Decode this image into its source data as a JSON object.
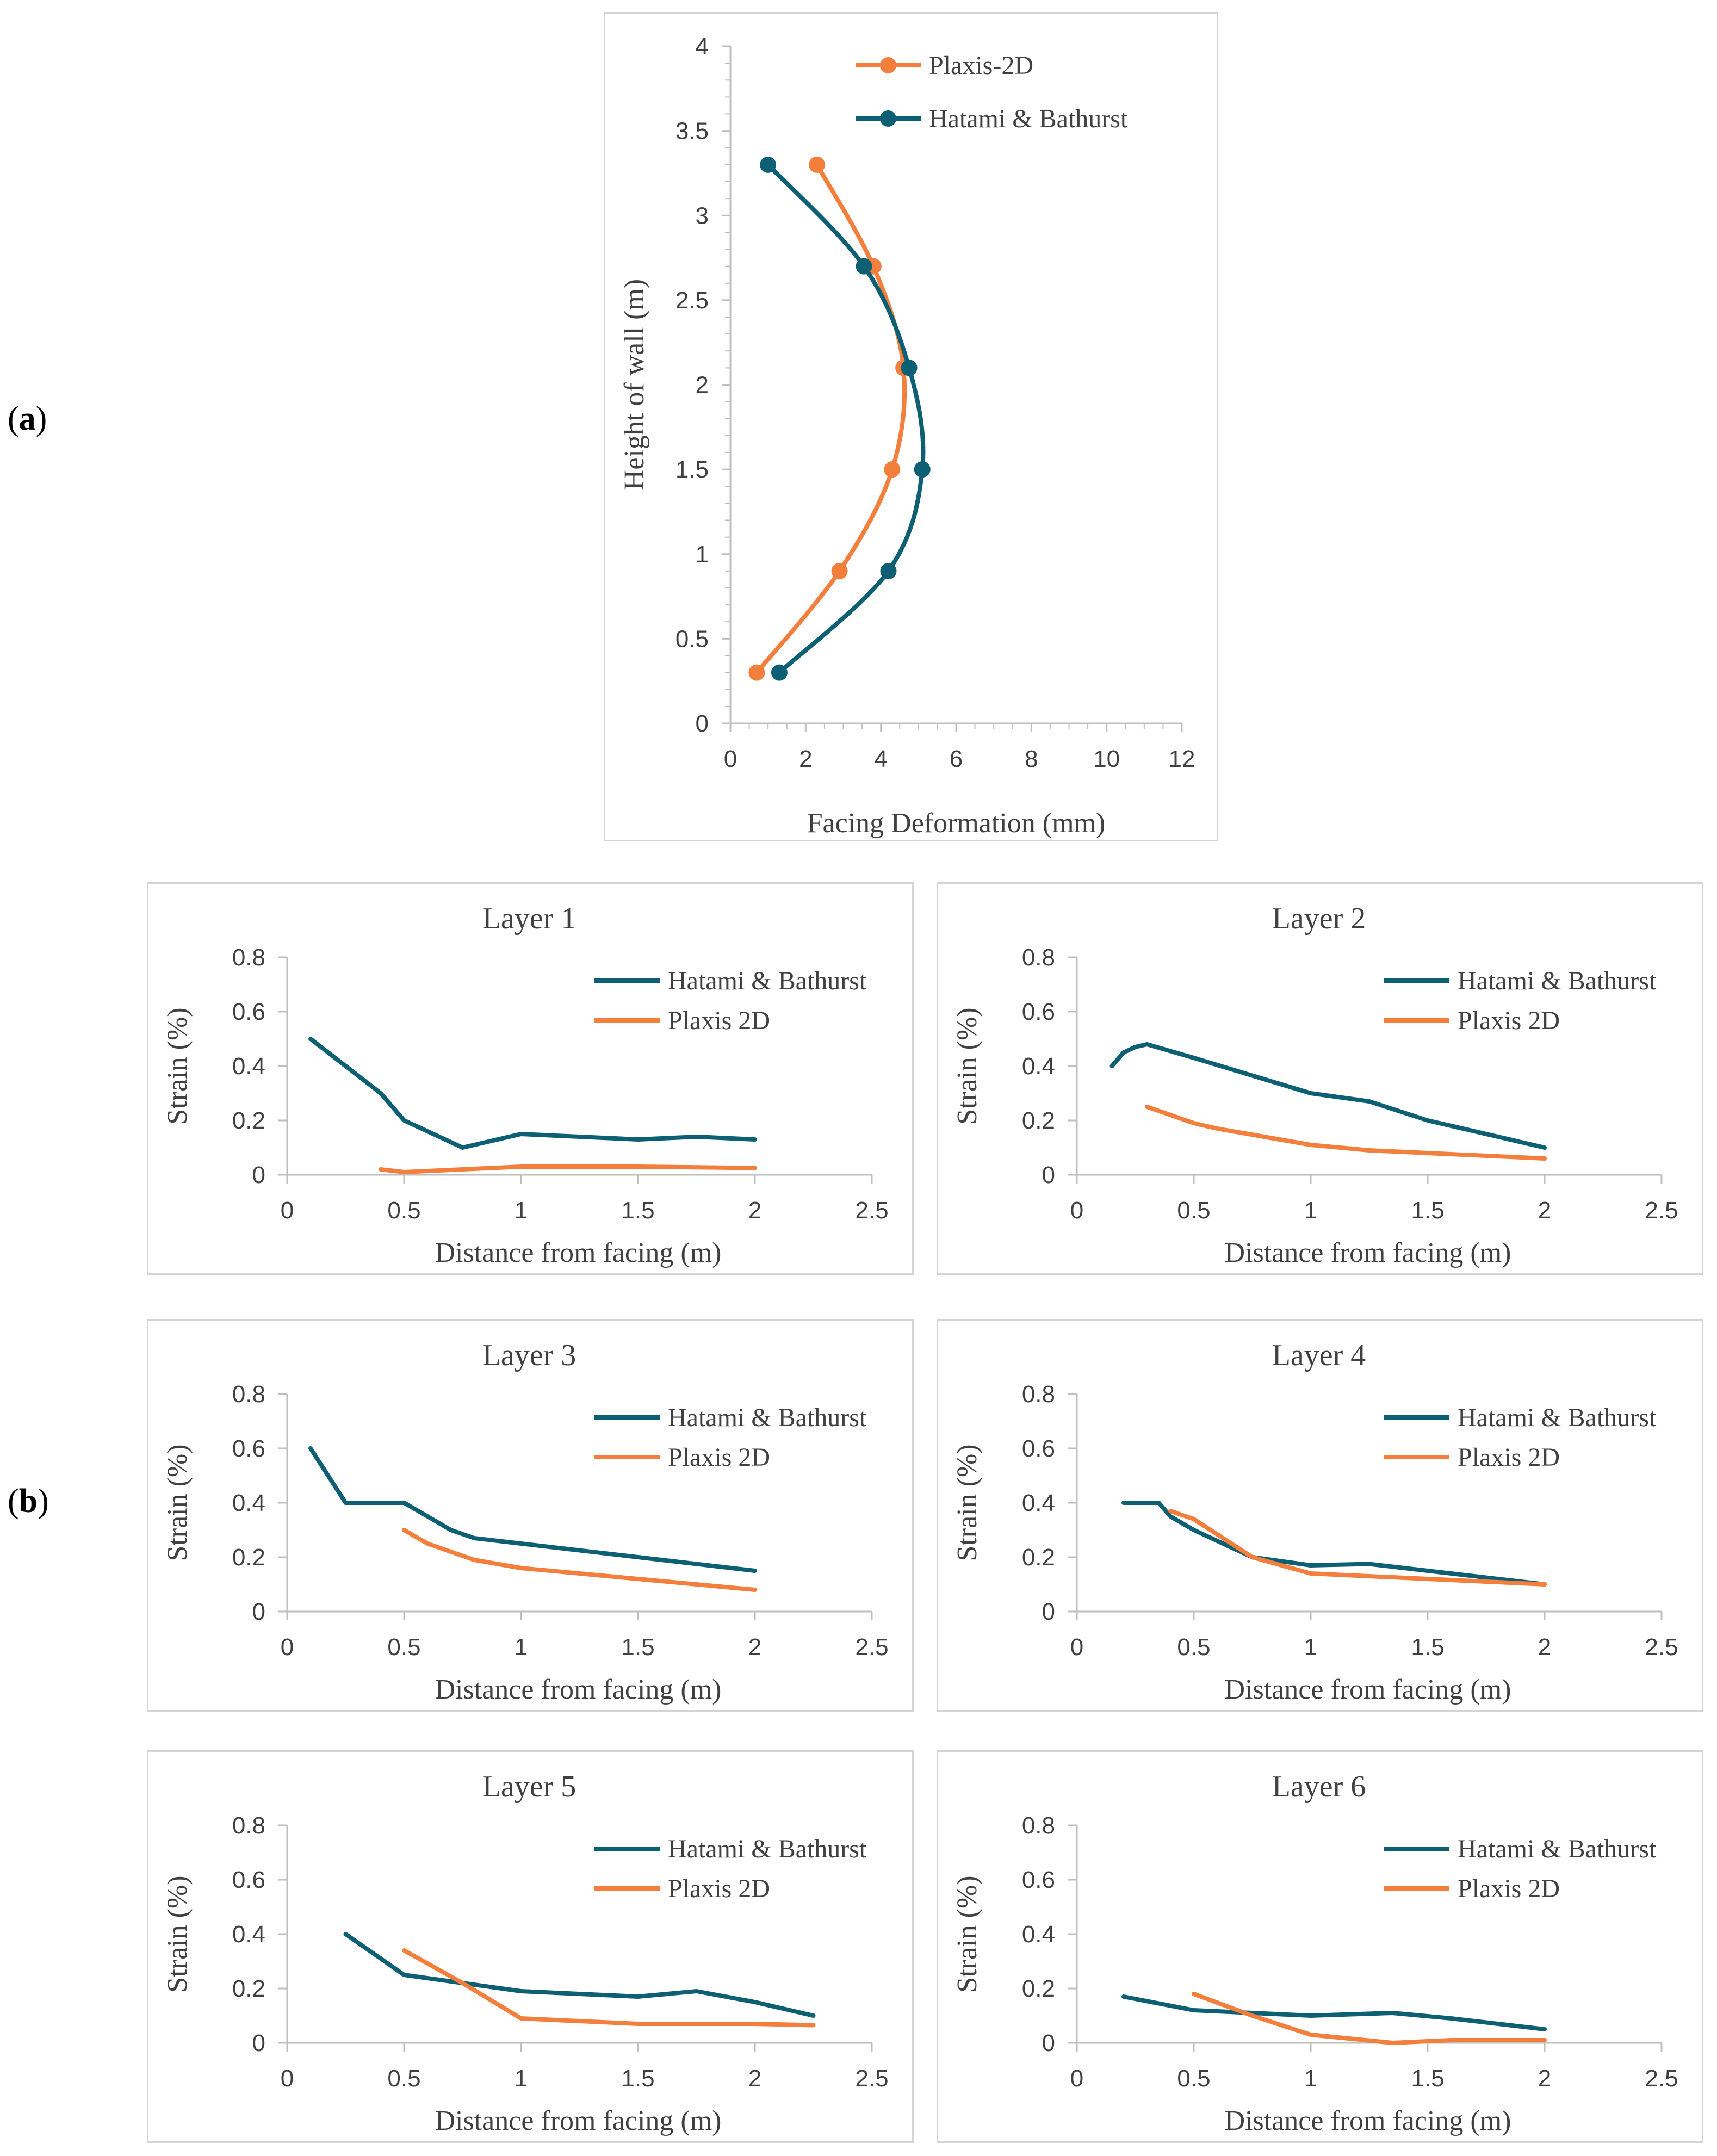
{
  "panel_labels": {
    "a": "a",
    "b": "b"
  },
  "colors": {
    "hatami": "#0d5f73",
    "plaxis": "#f47e3c",
    "axis": "#bfbfbf",
    "text": "#404040"
  },
  "chart_data": [
    {
      "id": "facing",
      "type": "line",
      "title": "",
      "xlabel": "Facing Deformation (mm)",
      "ylabel": "Height of wall (m)",
      "xlim": [
        0,
        12
      ],
      "ylim": [
        0,
        4
      ],
      "xticks": [
        "0",
        "2",
        "4",
        "6",
        "8",
        "10",
        "12"
      ],
      "yticks": [
        "0",
        "0.5",
        "1",
        "1.5",
        "2",
        "2.5",
        "3",
        "3.5",
        "4"
      ],
      "legend": [
        "Plaxis-2D",
        "Hatami & Bathurst"
      ],
      "series": [
        {
          "name": "Plaxis-2D",
          "color": "#f47e3c",
          "markers": true,
          "x": [
            0.7,
            2.9,
            4.3,
            4.6,
            3.8,
            2.3
          ],
          "y": [
            0.3,
            0.9,
            1.5,
            2.1,
            2.7,
            3.3
          ]
        },
        {
          "name": "Hatami & Bathurst",
          "color": "#0d5f73",
          "markers": true,
          "x": [
            1.3,
            4.2,
            5.1,
            4.75,
            3.55,
            1.0
          ],
          "y": [
            0.3,
            0.9,
            1.5,
            2.1,
            2.7,
            3.3
          ]
        }
      ]
    },
    {
      "id": "layer1",
      "type": "line",
      "title": "Layer 1",
      "xlabel": "Distance from facing (m)",
      "ylabel": "Strain  (%)",
      "xlim": [
        0,
        2.5
      ],
      "ylim": [
        0,
        0.8
      ],
      "xticks": [
        "0",
        "0.5",
        "1",
        "1.5",
        "2",
        "2.5"
      ],
      "yticks": [
        "0",
        "0.2",
        "0.4",
        "0.6",
        "0.8"
      ],
      "legend": [
        "Hatami & Bathurst",
        "Plaxis 2D"
      ],
      "series": [
        {
          "name": "Hatami & Bathurst",
          "color": "#0d5f73",
          "x": [
            0.1,
            0.4,
            0.5,
            0.75,
            1.0,
            1.5,
            1.75,
            2.0
          ],
          "y": [
            0.5,
            0.3,
            0.2,
            0.1,
            0.15,
            0.13,
            0.14,
            0.13
          ]
        },
        {
          "name": "Plaxis 2D",
          "color": "#f47e3c",
          "x": [
            0.4,
            0.5,
            0.75,
            1.0,
            1.5,
            2.0
          ],
          "y": [
            0.02,
            0.01,
            0.02,
            0.03,
            0.03,
            0.025
          ]
        }
      ]
    },
    {
      "id": "layer2",
      "type": "line",
      "title": "Layer 2",
      "xlabel": "Distance from facing (m)",
      "ylabel": "Strain  (%)",
      "xlim": [
        0,
        2.5
      ],
      "ylim": [
        0,
        0.8
      ],
      "xticks": [
        "0",
        "0.5",
        "1",
        "1.5",
        "2",
        "2.5"
      ],
      "yticks": [
        "0",
        "0.2",
        "0.4",
        "0.6",
        "0.8"
      ],
      "legend": [
        "Hatami & Bathurst",
        "Plaxis 2D"
      ],
      "series": [
        {
          "name": "Hatami & Bathurst",
          "color": "#0d5f73",
          "x": [
            0.15,
            0.2,
            0.25,
            0.3,
            0.5,
            1.0,
            1.25,
            1.5,
            2.0
          ],
          "y": [
            0.4,
            0.45,
            0.47,
            0.48,
            0.43,
            0.3,
            0.27,
            0.2,
            0.1
          ]
        },
        {
          "name": "Plaxis 2D",
          "color": "#f47e3c",
          "x": [
            0.3,
            0.5,
            0.6,
            0.8,
            1.0,
            1.25,
            1.5,
            2.0
          ],
          "y": [
            0.25,
            0.19,
            0.17,
            0.14,
            0.11,
            0.09,
            0.08,
            0.06
          ]
        }
      ]
    },
    {
      "id": "layer3",
      "type": "line",
      "title": "Layer 3",
      "xlabel": "Distance from facing (m)",
      "ylabel": "Strain  (%)",
      "xlim": [
        0,
        2.5
      ],
      "ylim": [
        0,
        0.8
      ],
      "xticks": [
        "0",
        "0.5",
        "1",
        "1.5",
        "2",
        "2.5"
      ],
      "yticks": [
        "0",
        "0.2",
        "0.4",
        "0.6",
        "0.8"
      ],
      "legend": [
        "Hatami & Bathurst",
        "Plaxis 2D"
      ],
      "series": [
        {
          "name": "Hatami & Bathurst",
          "color": "#0d5f73",
          "x": [
            0.1,
            0.25,
            0.5,
            0.7,
            0.8,
            1.0,
            1.5,
            2.0
          ],
          "y": [
            0.6,
            0.4,
            0.4,
            0.3,
            0.27,
            0.25,
            0.2,
            0.15
          ]
        },
        {
          "name": "Plaxis 2D",
          "color": "#f47e3c",
          "x": [
            0.5,
            0.6,
            0.8,
            1.0,
            1.5,
            2.0
          ],
          "y": [
            0.3,
            0.25,
            0.19,
            0.16,
            0.12,
            0.08
          ]
        }
      ]
    },
    {
      "id": "layer4",
      "type": "line",
      "title": "Layer 4",
      "xlabel": "Distance from facing (m)",
      "ylabel": "Strain  (%)",
      "xlim": [
        0,
        2.5
      ],
      "ylim": [
        0,
        0.8
      ],
      "xticks": [
        "0",
        "0.5",
        "1",
        "1.5",
        "2",
        "2.5"
      ],
      "yticks": [
        "0",
        "0.2",
        "0.4",
        "0.6",
        "0.8"
      ],
      "legend": [
        "Hatami & Bathurst",
        "Plaxis 2D"
      ],
      "series": [
        {
          "name": "Hatami & Bathurst",
          "color": "#0d5f73",
          "x": [
            0.2,
            0.35,
            0.4,
            0.5,
            0.75,
            1.0,
            1.25,
            1.5,
            2.0
          ],
          "y": [
            0.4,
            0.4,
            0.35,
            0.3,
            0.2,
            0.17,
            0.175,
            0.15,
            0.1
          ]
        },
        {
          "name": "Plaxis 2D",
          "color": "#f47e3c",
          "x": [
            0.4,
            0.5,
            0.75,
            1.0,
            1.5,
            2.0
          ],
          "y": [
            0.37,
            0.34,
            0.2,
            0.14,
            0.12,
            0.1
          ]
        }
      ]
    },
    {
      "id": "layer5",
      "type": "line",
      "title": "Layer 5",
      "xlabel": "Distance from facing (m)",
      "ylabel": "Strain  (%)",
      "xlim": [
        0,
        2.5
      ],
      "ylim": [
        0,
        0.8
      ],
      "xticks": [
        "0",
        "0.5",
        "1",
        "1.5",
        "2",
        "2.5"
      ],
      "yticks": [
        "0",
        "0.2",
        "0.4",
        "0.6",
        "0.8"
      ],
      "legend": [
        "Hatami & Bathurst",
        "Plaxis 2D"
      ],
      "series": [
        {
          "name": "Hatami & Bathurst",
          "color": "#0d5f73",
          "x": [
            0.25,
            0.5,
            0.75,
            1.0,
            1.25,
            1.5,
            1.75,
            2.0,
            2.25
          ],
          "y": [
            0.4,
            0.25,
            0.22,
            0.19,
            0.18,
            0.17,
            0.19,
            0.15,
            0.1
          ]
        },
        {
          "name": "Plaxis 2D",
          "color": "#f47e3c",
          "x": [
            0.5,
            0.75,
            1.0,
            1.5,
            1.75,
            2.0,
            2.25
          ],
          "y": [
            0.34,
            0.22,
            0.09,
            0.07,
            0.07,
            0.07,
            0.065
          ]
        }
      ]
    },
    {
      "id": "layer6",
      "type": "line",
      "title": "Layer 6",
      "xlabel": "Distance from facing (m)",
      "ylabel": "Strain  (%)",
      "xlim": [
        0,
        2.5
      ],
      "ylim": [
        0,
        0.8
      ],
      "xticks": [
        "0",
        "0.5",
        "1",
        "1.5",
        "2",
        "2.5"
      ],
      "yticks": [
        "0",
        "0.2",
        "0.4",
        "0.6",
        "0.8"
      ],
      "legend": [
        "Hatami & Bathurst",
        "Plaxis 2D"
      ],
      "series": [
        {
          "name": "Hatami & Bathurst",
          "color": "#0d5f73",
          "x": [
            0.2,
            0.5,
            0.75,
            1.0,
            1.35,
            1.6,
            2.0
          ],
          "y": [
            0.17,
            0.12,
            0.11,
            0.1,
            0.11,
            0.09,
            0.05
          ]
        },
        {
          "name": "Plaxis 2D",
          "color": "#f47e3c",
          "x": [
            0.5,
            0.75,
            1.0,
            1.35,
            1.6,
            2.0
          ],
          "y": [
            0.18,
            0.1,
            0.03,
            0.0,
            0.01,
            0.01
          ]
        }
      ]
    }
  ]
}
